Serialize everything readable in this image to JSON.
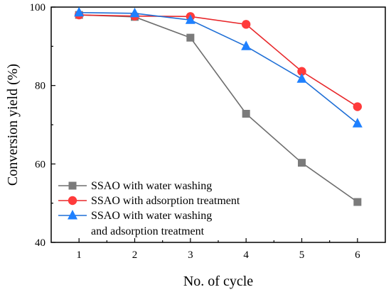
{
  "chart_data": {
    "type": "line",
    "xlabel": "No. of cycle",
    "ylabel": "Conversion yield (%)",
    "x": [
      1,
      2,
      3,
      4,
      5,
      6
    ],
    "xlim": [
      0.5,
      6.5
    ],
    "ylim": [
      40,
      100
    ],
    "xticks": [
      "1",
      "2",
      "3",
      "4",
      "5",
      "6"
    ],
    "yticks": [
      "40",
      "60",
      "80",
      "100"
    ],
    "grid": false,
    "legend_position": "bottom-left",
    "series": [
      {
        "name": "SSAO with water washing",
        "legend_lines": [
          "SSAO with water washing"
        ],
        "marker": "square",
        "color": "#6d6d6d",
        "marker_color": "#7b7b7b",
        "values": [
          98.0,
          97.5,
          92.2,
          72.8,
          60.3,
          50.3
        ]
      },
      {
        "name": "SSAO with adsorption treatment",
        "legend_lines": [
          "SSAO with adsorption treatment"
        ],
        "marker": "circle",
        "color": "#e8282b",
        "marker_color": "#ff3b3b",
        "values": [
          98.0,
          97.7,
          97.6,
          95.6,
          83.6,
          74.6
        ]
      },
      {
        "name": "SSAO with water washing and adsorption treatment",
        "legend_lines": [
          "SSAO with water washing",
          "and adsorption treatment"
        ],
        "marker": "triangle",
        "color": "#1f6fd6",
        "marker_color": "#1e80ff",
        "values": [
          98.6,
          98.4,
          96.7,
          90.0,
          81.7,
          70.3
        ]
      }
    ]
  }
}
